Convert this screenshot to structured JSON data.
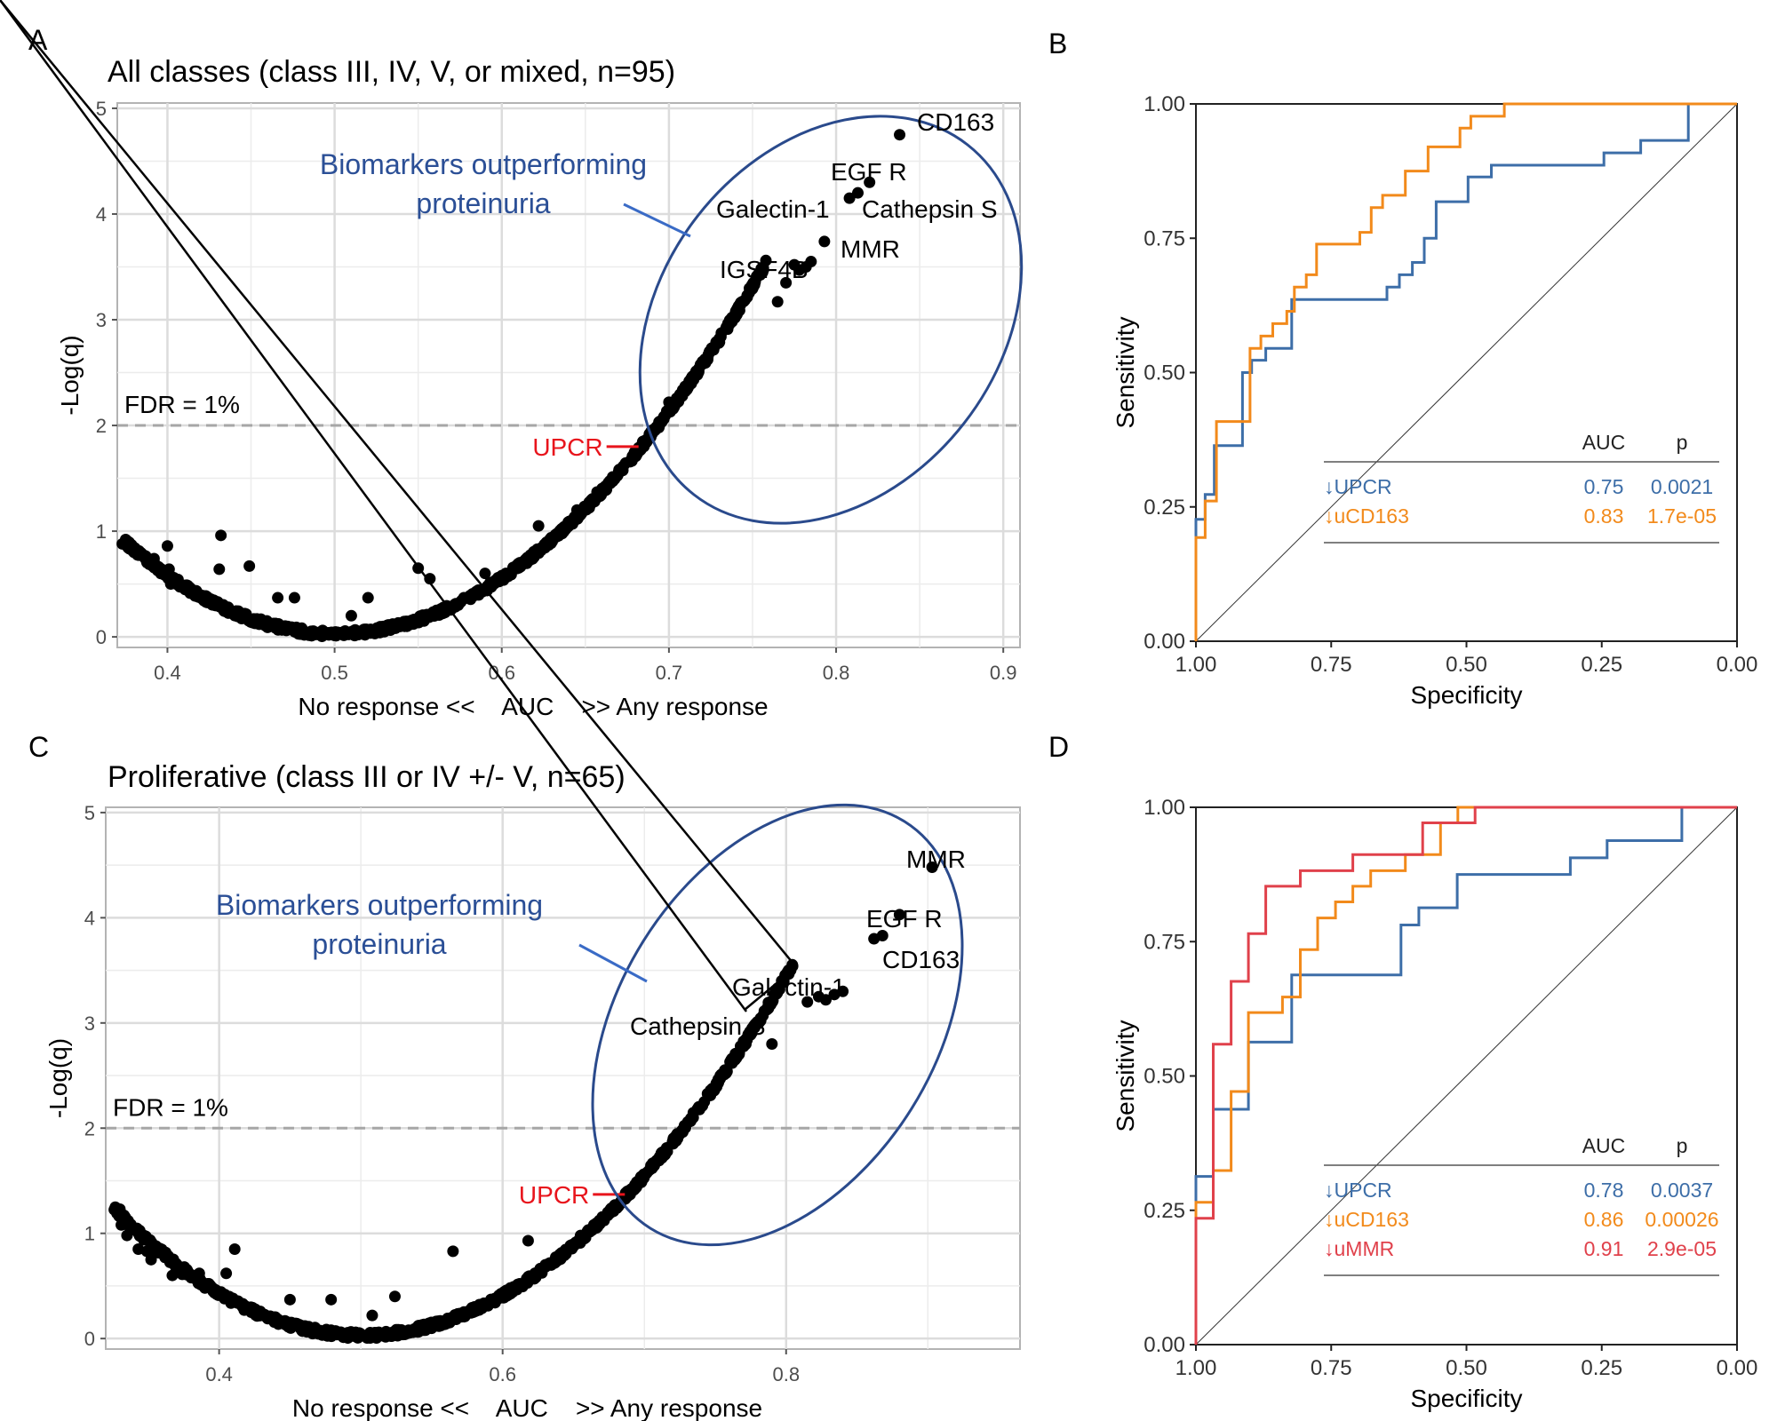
{
  "chart_data": [
    {
      "panel": "A",
      "type": "scatter",
      "title": "All classes (class III, IV, V, or mixed, n=95)",
      "xlabel": "No response <<    AUC    >> Any response",
      "ylabel": "-Log(q)",
      "xlim": [
        0.37,
        0.91
      ],
      "ylim": [
        -0.1,
        5.05
      ],
      "xticks": [
        "0.4",
        "0.5",
        "0.6",
        "0.7",
        "0.8",
        "0.9"
      ],
      "yticks": [
        "0",
        "1",
        "2",
        "3",
        "4",
        "5"
      ],
      "grid": true,
      "threshold": {
        "label": "FDR = 1%",
        "y": 2
      },
      "callout": {
        "line1": "Biomarkers outperforming",
        "line2": "proteinuria",
        "color": "#2b4f96"
      },
      "reference": {
        "label": "UPCR",
        "x": 0.685,
        "y": 1.8,
        "color": "#e8141c"
      },
      "labeled_points": [
        {
          "label": "CD163",
          "x": 0.838,
          "y": 4.75
        },
        {
          "label": "EGF R",
          "x": 0.82,
          "y": 4.3
        },
        {
          "label": "Galectin-1",
          "x": 0.808,
          "y": 4.15
        },
        {
          "label": "Cathepsin S",
          "x": 0.813,
          "y": 4.2
        },
        {
          "label": "MMR",
          "x": 0.793,
          "y": 3.74
        },
        {
          "label": "IGSF4B",
          "x": 0.775,
          "y": 3.52
        }
      ],
      "curve": {
        "description": "q-value curve vs AUC, minimum near AUC 0.5",
        "x_min": 0.5
      },
      "extra_points": [
        [
          0.373,
          0.88
        ],
        [
          0.377,
          0.85
        ],
        [
          0.38,
          0.8
        ],
        [
          0.387,
          0.75
        ],
        [
          0.392,
          0.74
        ],
        [
          0.393,
          0.68
        ],
        [
          0.4,
          0.86
        ],
        [
          0.401,
          0.64
        ],
        [
          0.402,
          0.5
        ],
        [
          0.41,
          0.48
        ],
        [
          0.432,
          0.96
        ],
        [
          0.431,
          0.64
        ],
        [
          0.449,
          0.67
        ],
        [
          0.466,
          0.37
        ],
        [
          0.476,
          0.37
        ],
        [
          0.52,
          0.37
        ],
        [
          0.55,
          0.65
        ],
        [
          0.557,
          0.55
        ],
        [
          0.51,
          0.2
        ],
        [
          0.59,
          0.6
        ],
        [
          0.622,
          1.05
        ],
        [
          0.645,
          1.2
        ],
        [
          0.657,
          1.37
        ],
        [
          0.7,
          2.22
        ],
        [
          0.765,
          3.17
        ],
        [
          0.77,
          3.35
        ],
        [
          0.778,
          3.47
        ],
        [
          0.782,
          3.5
        ],
        [
          0.785,
          3.55
        ]
      ]
    },
    {
      "panel": "B",
      "type": "line",
      "xlabel": "Specificity",
      "ylabel": "Sensitivity",
      "xlim": [
        1.0,
        0.0
      ],
      "ylim": [
        0.0,
        1.0
      ],
      "xticks": [
        "1.00",
        "0.75",
        "0.50",
        "0.25",
        "0.00"
      ],
      "yticks": [
        "0.00",
        "0.25",
        "0.50",
        "0.75",
        "1.00"
      ],
      "legend": {
        "header_auc": "AUC",
        "header_p": "p",
        "placement": "bottom-right"
      },
      "series": [
        {
          "name": "↓UPCR",
          "auc": "0.75",
          "p": "0.0021",
          "color": "#3d6ea8",
          "spec": [
            1.0,
            1.0,
            0.983,
            0.983,
            0.966,
            0.966,
            0.914,
            0.914,
            0.897,
            0.897,
            0.871,
            0.871,
            0.823,
            0.823,
            0.647,
            0.647,
            0.624,
            0.624,
            0.6,
            0.6,
            0.578,
            0.578,
            0.556,
            0.556,
            0.497,
            0.497,
            0.454,
            0.454,
            0.246,
            0.246,
            0.178,
            0.178,
            0.09,
            0.09,
            0.0
          ],
          "sens": [
            0.0,
            0.227,
            0.227,
            0.273,
            0.273,
            0.364,
            0.364,
            0.5,
            0.5,
            0.523,
            0.523,
            0.545,
            0.545,
            0.636,
            0.636,
            0.659,
            0.659,
            0.682,
            0.682,
            0.705,
            0.705,
            0.75,
            0.75,
            0.818,
            0.818,
            0.864,
            0.864,
            0.886,
            0.886,
            0.909,
            0.909,
            0.932,
            0.932,
            1.0,
            1.0
          ]
        },
        {
          "name": "↓uCD163",
          "auc": "0.83",
          "p": "1.7e-05",
          "color": "#f28a1b",
          "spec": [
            1.0,
            1.0,
            0.983,
            0.983,
            0.962,
            0.962,
            0.9,
            0.9,
            0.88,
            0.88,
            0.858,
            0.858,
            0.832,
            0.832,
            0.818,
            0.818,
            0.796,
            0.796,
            0.777,
            0.777,
            0.697,
            0.697,
            0.676,
            0.676,
            0.655,
            0.655,
            0.613,
            0.613,
            0.571,
            0.571,
            0.512,
            0.512,
            0.492,
            0.492,
            0.43,
            0.43,
            0.0
          ],
          "sens": [
            0.0,
            0.193,
            0.193,
            0.261,
            0.261,
            0.409,
            0.409,
            0.545,
            0.545,
            0.568,
            0.568,
            0.591,
            0.591,
            0.614,
            0.614,
            0.659,
            0.659,
            0.682,
            0.682,
            0.739,
            0.739,
            0.761,
            0.761,
            0.807,
            0.807,
            0.83,
            0.83,
            0.875,
            0.875,
            0.92,
            0.92,
            0.955,
            0.955,
            0.977,
            0.977,
            1.0,
            1.0
          ]
        }
      ]
    },
    {
      "panel": "C",
      "type": "scatter",
      "title": "Proliferative (class III or IV +/- V, n=65)",
      "xlabel": "No response <<    AUC    >> Any response",
      "ylabel": "-Log(q)",
      "xlim": [
        0.32,
        0.965
      ],
      "ylim": [
        -0.1,
        5.05
      ],
      "xticks": [
        "0.4",
        "0.6",
        "0.8"
      ],
      "yticks": [
        "0",
        "1",
        "2",
        "3",
        "4",
        "5"
      ],
      "grid": true,
      "threshold": {
        "label": "FDR = 1%",
        "y": 2
      },
      "callout": {
        "line1": "Biomarkers outperforming",
        "line2": "proteinuria",
        "color": "#2b4f96"
      },
      "reference": {
        "label": "UPCR",
        "x": 0.69,
        "y": 1.37,
        "color": "#e8141c"
      },
      "labeled_points": [
        {
          "label": "MMR",
          "x": 0.903,
          "y": 4.48
        },
        {
          "label": "EGF R",
          "x": 0.88,
          "y": 4.03
        },
        {
          "label": "CD163",
          "x": 0.868,
          "y": 3.83
        },
        {
          "label": "Galectin-1",
          "x": 0.862,
          "y": 3.8
        },
        {
          "label": "Cathepsin S",
          "x": 0.815,
          "y": 3.2
        }
      ],
      "curve": {
        "description": "q-value curve vs AUC, minimum near AUC 0.5",
        "x_min": 0.5
      },
      "extra_points": [
        [
          0.33,
          1.23
        ],
        [
          0.331,
          1.08
        ],
        [
          0.335,
          0.98
        ],
        [
          0.343,
          0.85
        ],
        [
          0.349,
          0.83
        ],
        [
          0.352,
          0.75
        ],
        [
          0.367,
          0.6
        ],
        [
          0.374,
          0.61
        ],
        [
          0.386,
          0.62
        ],
        [
          0.39,
          0.48
        ],
        [
          0.405,
          0.62
        ],
        [
          0.411,
          0.85
        ],
        [
          0.45,
          0.37
        ],
        [
          0.479,
          0.37
        ],
        [
          0.508,
          0.22
        ],
        [
          0.524,
          0.4
        ],
        [
          0.565,
          0.83
        ],
        [
          0.618,
          0.93
        ],
        [
          0.655,
          0.98
        ],
        [
          0.688,
          1.4
        ],
        [
          0.79,
          2.8
        ],
        [
          0.823,
          3.25
        ],
        [
          0.828,
          3.22
        ],
        [
          0.834,
          3.27
        ],
        [
          0.84,
          3.3
        ]
      ]
    },
    {
      "panel": "D",
      "type": "line",
      "xlabel": "Specificity",
      "ylabel": "Sensitivity",
      "xlim": [
        1.0,
        0.0
      ],
      "ylim": [
        0.0,
        1.0
      ],
      "xticks": [
        "1.00",
        "0.75",
        "0.50",
        "0.25",
        "0.00"
      ],
      "yticks": [
        "0.00",
        "0.25",
        "0.50",
        "0.75",
        "1.00"
      ],
      "legend": {
        "header_auc": "AUC",
        "header_p": "p",
        "placement": "bottom-right"
      },
      "series": [
        {
          "name": "↓UPCR",
          "auc": "0.78",
          "p": "0.0037",
          "color": "#3d6ea8",
          "spec": [
            1.0,
            1.0,
            0.968,
            0.968,
            0.903,
            0.903,
            0.823,
            0.823,
            0.621,
            0.621,
            0.588,
            0.588,
            0.517,
            0.517,
            0.308,
            0.308,
            0.24,
            0.24,
            0.102,
            0.102,
            0.0
          ],
          "sens": [
            0.0,
            0.313,
            0.313,
            0.438,
            0.438,
            0.563,
            0.563,
            0.688,
            0.688,
            0.781,
            0.781,
            0.813,
            0.813,
            0.875,
            0.875,
            0.906,
            0.906,
            0.938,
            0.938,
            1.0,
            1.0
          ]
        },
        {
          "name": "↓uCD163",
          "auc": "0.86",
          "p": "0.00026",
          "color": "#f28a1b",
          "spec": [
            1.0,
            1.0,
            0.968,
            0.968,
            0.935,
            0.935,
            0.903,
            0.903,
            0.84,
            0.84,
            0.807,
            0.807,
            0.775,
            0.775,
            0.742,
            0.742,
            0.71,
            0.71,
            0.677,
            0.677,
            0.613,
            0.613,
            0.548,
            0.548,
            0.516,
            0.516,
            0.0
          ],
          "sens": [
            0.0,
            0.265,
            0.265,
            0.324,
            0.324,
            0.471,
            0.471,
            0.618,
            0.618,
            0.647,
            0.647,
            0.735,
            0.735,
            0.794,
            0.794,
            0.824,
            0.824,
            0.853,
            0.853,
            0.882,
            0.882,
            0.912,
            0.912,
            0.971,
            0.971,
            1.0,
            1.0
          ]
        },
        {
          "name": "↓uMMR",
          "auc": "0.91",
          "p": "2.9e-05",
          "color": "#e0414b",
          "spec": [
            1.0,
            1.0,
            0.968,
            0.968,
            0.935,
            0.935,
            0.903,
            0.903,
            0.871,
            0.871,
            0.807,
            0.807,
            0.71,
            0.71,
            0.581,
            0.581,
            0.484,
            0.484,
            0.0
          ],
          "sens": [
            0.0,
            0.235,
            0.235,
            0.559,
            0.559,
            0.676,
            0.676,
            0.765,
            0.765,
            0.853,
            0.853,
            0.882,
            0.882,
            0.912,
            0.912,
            0.971,
            0.971,
            1.0,
            1.0
          ]
        }
      ]
    }
  ],
  "panel_letters": [
    "A",
    "B",
    "C",
    "D"
  ]
}
